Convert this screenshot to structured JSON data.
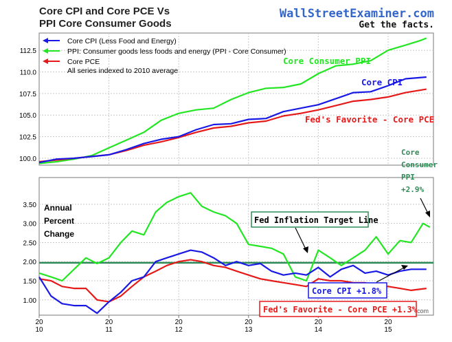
{
  "header": {
    "title_line1": "Core CPI and Core PCE Vs",
    "title_line2": "PPI Core Consumer Goods",
    "brand": "WallStreetExaminer.com",
    "tagline": "Get the facts.",
    "footer_fragment": "com"
  },
  "colors": {
    "core_cpi": "#1919e6",
    "ppi_core": "#22e622",
    "core_pce": "#e61919",
    "target_line": "#2e8b57",
    "annotation_green": "#2e8b57",
    "annotation_blue": "#1919e6",
    "annotation_red": "#e61919",
    "brand_blue": "#3366cc"
  },
  "legend": {
    "items": [
      {
        "label": "Core CPI (Less Food and Energy)",
        "color_key": "core_cpi"
      },
      {
        "label": "PPI: Consumer goods less foods and energy (PPI - Core Consumer)",
        "color_key": "ppi_core"
      },
      {
        "label": "Core PCE",
        "color_key": "core_pce"
      }
    ],
    "note": "All series indexed to 2010 average"
  },
  "annotations": {
    "top_ppi": "Core Consumer PPI",
    "top_cpi": "Core CPI",
    "top_pce": "Fed's Favorite - Core PCE",
    "right_ppi_lines": [
      "Core",
      "Consumer",
      "PPI",
      "+2.9%"
    ],
    "annual_lines": [
      "Annual",
      "Percent",
      "Change"
    ],
    "target_box": "Fed Inflation Target Line",
    "cpi_box": "Core CPI +1.8%",
    "pce_box": "Fed's Favorite - Core PCE +1.3%"
  },
  "chart_data": [
    {
      "type": "line",
      "panel": "top",
      "ylim": [
        99.2,
        114.5
      ],
      "y_ticks": [
        "100.0",
        "102.5",
        "105.0",
        "107.5",
        "110.0",
        "112.5"
      ],
      "y_tick_values": [
        100.0,
        102.5,
        105.0,
        107.5,
        110.0,
        112.5
      ],
      "x_range": [
        2010.0,
        2015.65
      ],
      "grid": true,
      "series": [
        {
          "name": "Core CPI (Less Food and Energy)",
          "color_key": "core_cpi",
          "x": [
            2010.0,
            2010.25,
            2010.5,
            2010.75,
            2011.0,
            2011.25,
            2011.5,
            2011.75,
            2012.0,
            2012.25,
            2012.5,
            2012.75,
            2013.0,
            2013.25,
            2013.5,
            2013.75,
            2014.0,
            2014.25,
            2014.5,
            2014.75,
            2015.0,
            2015.25,
            2015.55
          ],
          "y": [
            99.5,
            99.9,
            100.0,
            100.2,
            100.4,
            101.0,
            101.7,
            102.2,
            102.5,
            103.3,
            103.9,
            104.0,
            104.5,
            104.6,
            105.4,
            105.8,
            106.2,
            106.9,
            107.6,
            107.7,
            108.4,
            109.2,
            109.4
          ]
        },
        {
          "name": "PPI: Consumer goods less foods and energy (PPI - Core Consumer)",
          "color_key": "ppi_core",
          "x": [
            2010.0,
            2010.25,
            2010.5,
            2010.75,
            2011.0,
            2011.25,
            2011.5,
            2011.75,
            2012.0,
            2012.25,
            2012.5,
            2012.75,
            2013.0,
            2013.25,
            2013.5,
            2013.75,
            2014.0,
            2014.25,
            2014.5,
            2014.75,
            2015.0,
            2015.25,
            2015.45,
            2015.55
          ],
          "y": [
            99.4,
            99.6,
            99.9,
            100.3,
            101.2,
            102.1,
            103.0,
            104.4,
            105.2,
            105.6,
            105.8,
            106.8,
            107.6,
            108.1,
            108.2,
            108.6,
            109.8,
            110.7,
            110.9,
            111.3,
            112.5,
            113.1,
            113.6,
            113.9
          ]
        },
        {
          "name": "Core PCE",
          "color_key": "core_pce",
          "x": [
            2010.0,
            2010.25,
            2010.5,
            2010.75,
            2011.0,
            2011.25,
            2011.5,
            2011.75,
            2012.0,
            2012.25,
            2012.5,
            2012.75,
            2013.0,
            2013.25,
            2013.5,
            2013.75,
            2014.0,
            2014.25,
            2014.5,
            2014.75,
            2015.0,
            2015.25,
            2015.55
          ],
          "y": [
            99.6,
            99.8,
            100.0,
            100.2,
            100.4,
            100.9,
            101.5,
            101.9,
            102.4,
            103.0,
            103.5,
            103.7,
            104.1,
            104.3,
            104.9,
            105.2,
            105.6,
            106.1,
            106.6,
            106.8,
            107.1,
            107.6,
            108.0
          ]
        }
      ]
    },
    {
      "type": "line",
      "panel": "bottom",
      "ylim": [
        0.6,
        4.2
      ],
      "y_ticks": [
        "1.00",
        "1.50",
        "2.00",
        "2.50",
        "3.00",
        "3.50"
      ],
      "y_tick_values": [
        1.0,
        1.5,
        2.0,
        2.5,
        3.0,
        3.5
      ],
      "x_ticks": [
        "20\n10",
        "20\n11",
        "20\n12",
        "20\n13",
        "20\n14",
        "20\n15"
      ],
      "x_tick_values": [
        2010,
        2011,
        2012,
        2013,
        2014,
        2015
      ],
      "x_range": [
        2010.0,
        2015.65
      ],
      "grid": true,
      "reference_line": 1.97,
      "series": [
        {
          "name": "Core CPI (Less Food and Energy)",
          "color_key": "core_cpi",
          "x": [
            2010.0,
            2010.17,
            2010.33,
            2010.5,
            2010.67,
            2010.83,
            2011.0,
            2011.17,
            2011.33,
            2011.5,
            2011.67,
            2011.83,
            2012.0,
            2012.17,
            2012.33,
            2012.5,
            2012.67,
            2012.83,
            2013.0,
            2013.17,
            2013.33,
            2013.5,
            2013.67,
            2013.83,
            2014.0,
            2014.17,
            2014.33,
            2014.5,
            2014.67,
            2014.83,
            2015.0,
            2015.17,
            2015.33,
            2015.55
          ],
          "y": [
            1.6,
            1.1,
            0.9,
            0.85,
            0.85,
            0.65,
            0.95,
            1.2,
            1.5,
            1.6,
            2.0,
            2.1,
            2.2,
            2.3,
            2.25,
            2.1,
            1.9,
            2.0,
            1.9,
            1.95,
            1.75,
            1.65,
            1.7,
            1.65,
            1.85,
            1.6,
            1.8,
            1.9,
            1.7,
            1.75,
            1.65,
            1.75,
            1.8,
            1.8
          ]
        },
        {
          "name": "PPI: Consumer goods less foods and energy (PPI - Core Consumer)",
          "color_key": "ppi_core",
          "x": [
            2010.0,
            2010.17,
            2010.33,
            2010.5,
            2010.67,
            2010.83,
            2011.0,
            2011.17,
            2011.33,
            2011.5,
            2011.67,
            2011.83,
            2012.0,
            2012.17,
            2012.33,
            2012.5,
            2012.67,
            2012.83,
            2013.0,
            2013.17,
            2013.33,
            2013.5,
            2013.67,
            2013.83,
            2014.0,
            2014.17,
            2014.33,
            2014.5,
            2014.67,
            2014.83,
            2015.0,
            2015.17,
            2015.33,
            2015.5,
            2015.6
          ],
          "y": [
            1.7,
            1.6,
            1.5,
            1.8,
            2.1,
            1.95,
            2.1,
            2.5,
            2.8,
            2.7,
            3.3,
            3.55,
            3.7,
            3.8,
            3.45,
            3.3,
            3.2,
            3.0,
            2.45,
            2.4,
            2.35,
            2.2,
            1.6,
            1.5,
            2.3,
            2.1,
            1.9,
            2.1,
            2.3,
            2.65,
            2.2,
            2.55,
            2.5,
            3.0,
            2.9
          ]
        },
        {
          "name": "Core PCE",
          "color_key": "core_pce",
          "x": [
            2010.0,
            2010.17,
            2010.33,
            2010.5,
            2010.67,
            2010.83,
            2011.0,
            2011.17,
            2011.33,
            2011.5,
            2011.67,
            2011.83,
            2012.0,
            2012.17,
            2012.33,
            2012.5,
            2012.67,
            2012.83,
            2013.0,
            2013.17,
            2013.33,
            2013.5,
            2013.67,
            2013.83,
            2014.0,
            2014.17,
            2014.33,
            2014.5,
            2014.67,
            2014.83,
            2015.0,
            2015.17,
            2015.33,
            2015.55
          ],
          "y": [
            1.55,
            1.5,
            1.35,
            1.3,
            1.3,
            1.0,
            0.95,
            1.1,
            1.35,
            1.6,
            1.75,
            1.9,
            2.0,
            2.05,
            2.0,
            1.9,
            1.85,
            1.75,
            1.65,
            1.55,
            1.5,
            1.45,
            1.4,
            1.35,
            1.55,
            1.5,
            1.5,
            1.45,
            1.45,
            1.35,
            1.35,
            1.3,
            1.25,
            1.3
          ]
        }
      ]
    }
  ]
}
